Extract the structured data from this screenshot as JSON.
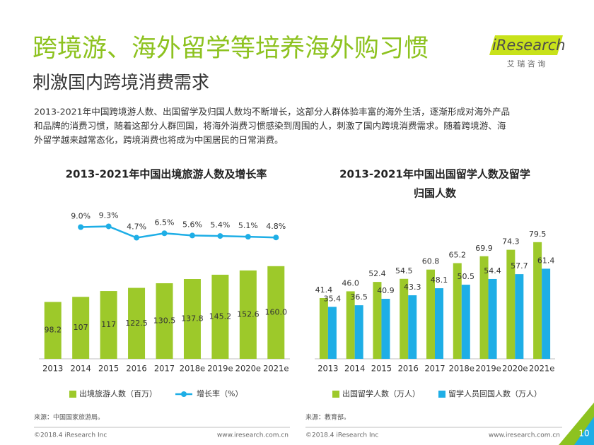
{
  "header": {
    "title": "跨境游、海外留学等培养海外购习惯",
    "subtitle": "刺激国内跨境消费需求",
    "logo": "iResearch",
    "logo_sub": "艾 瑞 咨 询"
  },
  "paragraph": [
    "2013-2021年中国跨境游人数、出国留学及归国人数均不断增长，这部分人群体验丰富的海外生活，逐渐形成对海外产品",
    "和品牌的消费习惯，随着这部分人群回国，将海外消费习惯感染到周围的人，刺激了国内跨境消费需求。随着跨境游、海",
    "外留学越来越常态化，跨境消费也将成为中国居民的日常消费。"
  ],
  "chart_data": [
    {
      "type": "bar_line",
      "title": [
        "2013-2021年中国出境旅游人数及增长率"
      ],
      "categories": [
        "2013",
        "2014",
        "2015",
        "2016",
        "2017",
        "2018e",
        "2019e",
        "2020e",
        "2021e"
      ],
      "series": [
        {
          "name": "出境旅游人数（百万）",
          "color": "#9dc92a",
          "values": [
            98.2,
            107,
            117,
            122.5,
            130.5,
            137.8,
            145.2,
            152.6,
            160.0
          ],
          "value_labels": [
            "98.2",
            "107",
            "117",
            "122.5",
            "130.5",
            "137.8",
            "145.2",
            "152.6",
            "160.0"
          ]
        },
        {
          "name": "增长率（%）",
          "color": "#1eaee6",
          "axis": "y2",
          "values": [
            null,
            9.0,
            9.3,
            4.7,
            6.5,
            5.6,
            5.4,
            5.1,
            4.8
          ],
          "value_labels": [
            null,
            "9.0%",
            "9.3%",
            "4.7%",
            "6.5%",
            "5.6%",
            "5.4%",
            "5.1%",
            "4.8%"
          ]
        }
      ],
      "ylim": [
        0,
        180
      ],
      "y2lim": [
        0,
        10
      ]
    },
    {
      "type": "grouped_bar",
      "title": [
        "2013-2021年中国出国留学人数及留学",
        "归国人数"
      ],
      "categories": [
        "2013",
        "2014",
        "2015",
        "2016",
        "2017",
        "2018e",
        "2019e",
        "2020e",
        "2021e"
      ],
      "series": [
        {
          "name": "出国留学人数（万人）",
          "color": "#9dc92a",
          "values": [
            41.4,
            46.0,
            52.4,
            54.5,
            60.8,
            65.2,
            69.9,
            74.3,
            79.5
          ],
          "value_labels": [
            "41.4",
            "46.0",
            "52.4",
            "54.5",
            "60.8",
            "65.2",
            "69.9",
            "74.3",
            "79.5"
          ]
        },
        {
          "name": "留学人员回国人数（万人）",
          "color": "#1eaee6",
          "values": [
            35.4,
            36.5,
            40.9,
            43.3,
            48.1,
            50.5,
            54.4,
            57.7,
            61.4
          ]
        }
      ],
      "ylim": [
        0,
        90
      ]
    }
  ],
  "footer": {
    "sources": [
      "来源：中国国家旅游局。",
      "来源：教育部。"
    ],
    "copyright": [
      "©2018.4 iResearch Inc",
      "©2018.4 iResearch Inc"
    ],
    "website": [
      "www.iresearch.com.cn",
      "www.iresearch.com.cn"
    ],
    "page": 10
  }
}
